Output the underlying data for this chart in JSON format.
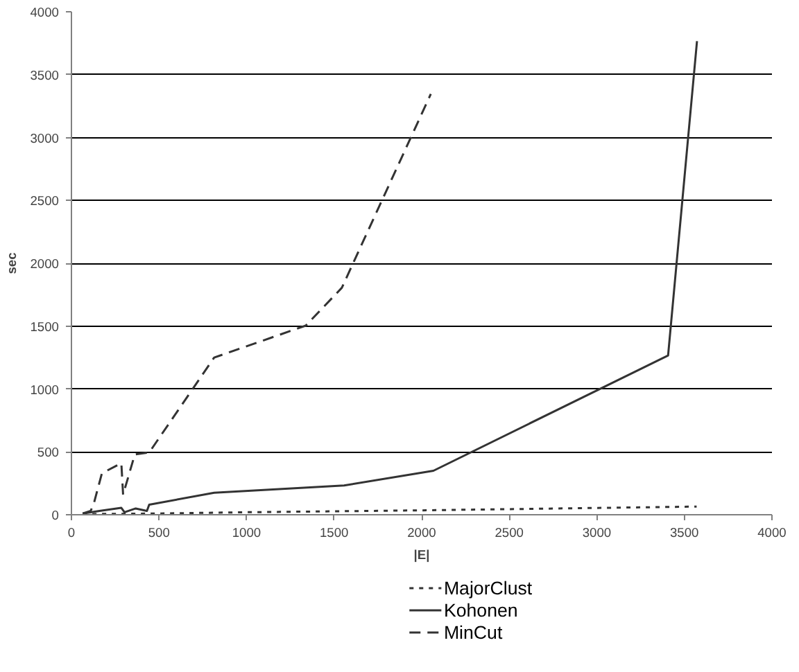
{
  "chart_data": {
    "type": "line",
    "xlabel": "|E|",
    "ylabel": "sec",
    "xlim": [
      0,
      4000
    ],
    "ylim": [
      0,
      4000
    ],
    "xticks": [
      0,
      500,
      1000,
      1500,
      2000,
      2500,
      3000,
      3500,
      4000
    ],
    "yticks": [
      0,
      500,
      1000,
      1500,
      2000,
      2500,
      3000,
      3500,
      4000
    ],
    "grid": "y",
    "legend": "bottom",
    "marker": "none",
    "series": [
      {
        "name": "MajorClust",
        "color": "#333333",
        "line_style": "dotted",
        "x": [
          64,
          500,
          1000,
          2000,
          3570
        ],
        "values": [
          5,
          10,
          20,
          35,
          65
        ]
      },
      {
        "name": "Kohonen",
        "color": "#333333",
        "line_style": "solid",
        "x": [
          64,
          160,
          285,
          303,
          367,
          431,
          444,
          815,
          1557,
          2067,
          3407,
          3572
        ],
        "values": [
          10,
          30,
          55,
          20,
          50,
          30,
          80,
          175,
          233,
          350,
          1267,
          3767
        ]
      },
      {
        "name": "MinCut",
        "color": "#333333",
        "line_style": "dashed",
        "x": [
          64,
          110,
          130,
          174,
          285,
          295,
          362,
          444,
          815,
          1338,
          1544,
          2052
        ],
        "values": [
          10,
          30,
          100,
          330,
          410,
          160,
          480,
          495,
          1250,
          1504,
          1805,
          3346
        ]
      }
    ]
  }
}
